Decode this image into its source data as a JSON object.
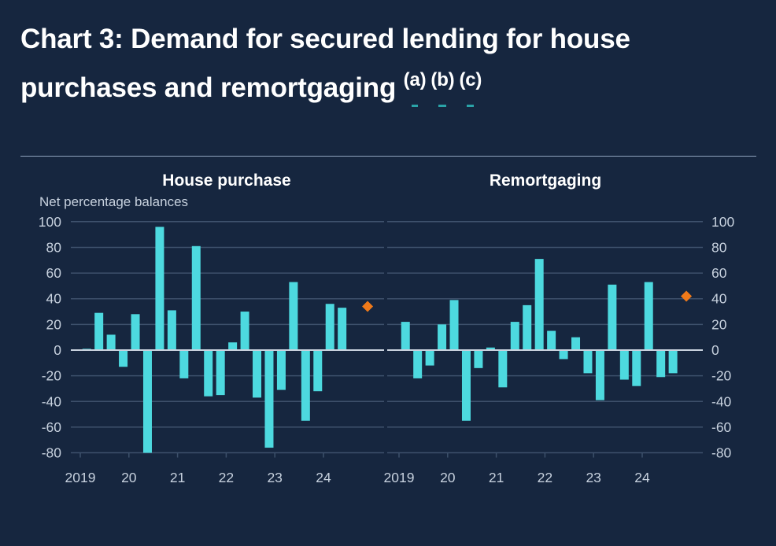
{
  "title": {
    "main": "Chart 3: Demand for secured lending for house purchases and remortgaging",
    "footnotes": [
      "(a)",
      "(b)",
      "(c)"
    ]
  },
  "colors": {
    "background": "#16263f",
    "bar": "#4dd9df",
    "diamond": "#f07a1a",
    "gridline": "#3d506b",
    "zero_line": "#c9d2de",
    "footnote_underline": "#2aa3a8"
  },
  "chart_data": [
    {
      "type": "bar",
      "title": "House purchase",
      "ylabel": "Net percentage balances",
      "ylim": [
        -80,
        100
      ],
      "yticks": [
        "100",
        "80",
        "60",
        "40",
        "20",
        "0",
        "-20",
        "-40",
        "-60",
        "-80"
      ],
      "ytick_values": [
        100,
        80,
        60,
        40,
        20,
        0,
        -20,
        -40,
        -60,
        -80
      ],
      "y_axis_side": "left",
      "xtick_labels": [
        "2019",
        "20",
        "21",
        "22",
        "23",
        "24"
      ],
      "categories": [
        "2019 Q1",
        "2019 Q2",
        "2019 Q3",
        "2019 Q4",
        "2020 Q1",
        "2020 Q2",
        "2020 Q3",
        "2020 Q4",
        "2021 Q1",
        "2021 Q2",
        "2021 Q3",
        "2021 Q4",
        "2022 Q1",
        "2022 Q2",
        "2022 Q3",
        "2022 Q4",
        "2023 Q1",
        "2023 Q2",
        "2023 Q3",
        "2023 Q4",
        "2024 Q1",
        "2024 Q2"
      ],
      "values": [
        1,
        29,
        12,
        -13,
        28,
        -80,
        96,
        31,
        -22,
        81,
        -36,
        -35,
        6,
        30,
        -37,
        -76,
        -31,
        53,
        -55,
        -32,
        36,
        33
      ],
      "expected": {
        "period": "2024 Q4",
        "value": 34,
        "marker": "diamond"
      },
      "grid": true
    },
    {
      "type": "bar",
      "title": "Remortgaging",
      "ylabel": "",
      "ylim": [
        -80,
        100
      ],
      "yticks": [
        "100",
        "80",
        "60",
        "40",
        "20",
        "0",
        "-20",
        "-40",
        "-60",
        "-80"
      ],
      "ytick_values": [
        100,
        80,
        60,
        40,
        20,
        0,
        -20,
        -40,
        -60,
        -80
      ],
      "y_axis_side": "right",
      "xtick_labels": [
        "2019",
        "20",
        "21",
        "22",
        "23",
        "24"
      ],
      "categories": [
        "2019 Q1",
        "2019 Q2",
        "2019 Q3",
        "2019 Q4",
        "2020 Q1",
        "2020 Q2",
        "2020 Q3",
        "2020 Q4",
        "2021 Q1",
        "2021 Q2",
        "2021 Q3",
        "2021 Q4",
        "2022 Q1",
        "2022 Q2",
        "2022 Q3",
        "2022 Q4",
        "2023 Q1",
        "2023 Q2",
        "2023 Q3",
        "2023 Q4",
        "2024 Q1",
        "2024 Q2",
        "2024 Q3"
      ],
      "values": [
        22,
        -22,
        -12,
        20,
        39,
        -55,
        -14,
        2,
        -29,
        22,
        35,
        71,
        15,
        -7,
        10,
        -18,
        -39,
        51,
        -23,
        -28,
        53,
        -21,
        -18
      ],
      "expected": {
        "period": "2024 Q4",
        "value": 42,
        "marker": "diamond"
      },
      "grid": true
    }
  ]
}
